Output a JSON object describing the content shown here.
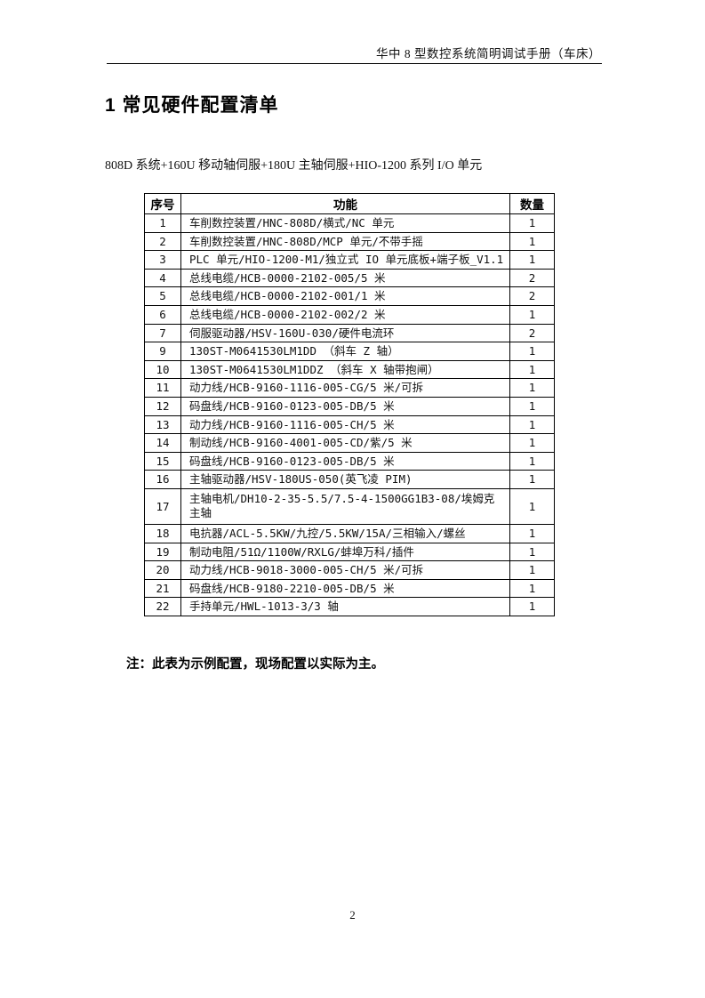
{
  "doc": {
    "header_title": "华中 8 型数控系统简明调试手册（车床）",
    "section_title": "1 常见硬件配置清单",
    "intro": "808D 系统+160U 移动轴伺服+180U 主轴伺服+HIO-1200 系列 I/O 单元",
    "note": "注：此表为示例配置，现场配置以实际为主。",
    "page_number": "2"
  },
  "table": {
    "headers": [
      "序号",
      "功能",
      "数量"
    ],
    "rows": [
      {
        "no": "1",
        "func": "车削数控装置/HNC-808D/横式/NC 单元",
        "qty": "1"
      },
      {
        "no": "2",
        "func": "车削数控装置/HNC-808D/MCP 单元/不带手摇",
        "qty": "1"
      },
      {
        "no": "3",
        "func": "PLC 单元/HIO-1200-M1/独立式 IO 单元底板+端子板_V1.1",
        "qty": "1"
      },
      {
        "no": "4",
        "func": "总线电缆/HCB-0000-2102-005/5 米",
        "qty": "2"
      },
      {
        "no": "5",
        "func": "总线电缆/HCB-0000-2102-001/1 米",
        "qty": "2"
      },
      {
        "no": "6",
        "func": "总线电缆/HCB-0000-2102-002/2 米",
        "qty": "1"
      },
      {
        "no": "7",
        "func": "伺服驱动器/HSV-160U-030/硬件电流环",
        "qty": "2"
      },
      {
        "no": "9",
        "func": "130ST-M0641530LM1DD  （斜车 Z 轴）",
        "qty": "1"
      },
      {
        "no": "10",
        "func": "130ST-M0641530LM1DDZ （斜车 X 轴带抱闸）",
        "qty": "1"
      },
      {
        "no": "11",
        "func": "动力线/HCB-9160-1116-005-CG/5 米/可拆",
        "qty": "1"
      },
      {
        "no": "12",
        "func": "码盘线/HCB-9160-0123-005-DB/5 米",
        "qty": "1"
      },
      {
        "no": "13",
        "func": "动力线/HCB-9160-1116-005-CH/5 米",
        "qty": "1"
      },
      {
        "no": "14",
        "func": "制动线/HCB-9160-4001-005-CD/紫/5 米",
        "qty": "1"
      },
      {
        "no": "15",
        "func": "码盘线/HCB-9160-0123-005-DB/5 米",
        "qty": "1"
      },
      {
        "no": "16",
        "func": "主轴驱动器/HSV-180US-050(英飞凌 PIM)",
        "qty": "1"
      },
      {
        "no": "17",
        "func": "主轴电机/DH10-2-35-5.5/7.5-4-1500GG1B3-08/埃姆克主轴",
        "qty": "1"
      },
      {
        "no": "18",
        "func": "电抗器/ACL-5.5KW/九控/5.5KW/15A/三相输入/螺丝",
        "qty": "1"
      },
      {
        "no": "19",
        "func": "制动电阻/51Ω/1100W/RXLG/蚌埠万科/插件",
        "qty": "1"
      },
      {
        "no": "20",
        "func": "动力线/HCB-9018-3000-005-CH/5 米/可拆",
        "qty": "1"
      },
      {
        "no": "21",
        "func": "码盘线/HCB-9180-2210-005-DB/5 米",
        "qty": "1"
      },
      {
        "no": "22",
        "func": "手持单元/HWL-1013-3/3 轴",
        "qty": "1"
      }
    ]
  }
}
